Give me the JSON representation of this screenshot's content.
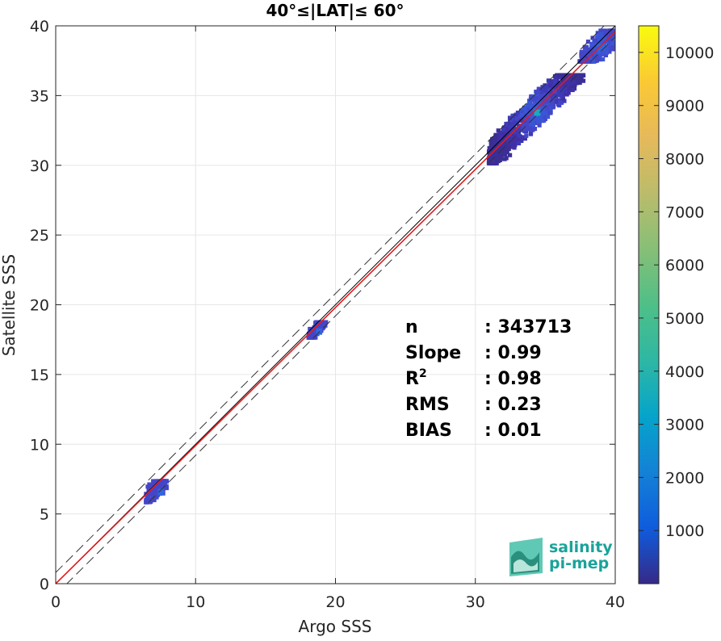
{
  "chart_data": {
    "type": "heatmap",
    "title": "40°≤|LAT|≤ 60°",
    "xlabel": "Argo SSS",
    "ylabel": "Satellite SSS",
    "xlim": [
      0,
      40
    ],
    "ylim": [
      0,
      40
    ],
    "x_ticks": [
      "0",
      "10",
      "20",
      "30",
      "40"
    ],
    "y_ticks": [
      "0",
      "5",
      "10",
      "15",
      "20",
      "25",
      "30",
      "35",
      "40"
    ],
    "grid": true,
    "colorbar": {
      "range": [
        0,
        10500
      ],
      "ticks": [
        "1000",
        "2000",
        "3000",
        "4000",
        "5000",
        "6000",
        "7000",
        "8000",
        "9000",
        "10000"
      ],
      "colormap": "parula"
    },
    "lines": [
      {
        "type": "identity",
        "slope": 1,
        "intercept": 0,
        "color": "#000000",
        "style": "solid"
      },
      {
        "type": "regression",
        "slope": 0.99,
        "intercept": 0.0,
        "color": "#e41a1c",
        "style": "solid"
      },
      {
        "type": "upper-bound",
        "slope": 1,
        "intercept": 0.8,
        "color": "#333333",
        "style": "dashed"
      },
      {
        "type": "lower-bound",
        "slope": 1,
        "intercept": -0.8,
        "color": "#333333",
        "style": "dashed"
      }
    ],
    "clusters": [
      {
        "x_range": [
          30.8,
          37.6
        ],
        "y_range": [
          30.3,
          36.6
        ],
        "intensity": "low",
        "peak_x": 34.2,
        "peak_y": 34.0,
        "peak_count": 2500
      },
      {
        "x_range": [
          37.3,
          39.8
        ],
        "y_range": [
          37.6,
          39.8
        ],
        "intensity": "low",
        "peak_x": 38.8,
        "peak_y": 38.7,
        "peak_count": 1500
      },
      {
        "x_range": [
          17.9,
          19.2
        ],
        "y_range": [
          17.8,
          18.9
        ],
        "intensity": "low",
        "peak_x": 18.6,
        "peak_y": 18.3,
        "peak_count": 600
      },
      {
        "x_range": [
          6.3,
          7.8
        ],
        "y_range": [
          6.0,
          7.5
        ],
        "intensity": "low",
        "peak_x": 7.3,
        "peak_y": 6.8,
        "peak_count": 200
      }
    ],
    "stats": [
      {
        "label": "n",
        "value": ": 343713"
      },
      {
        "label": "Slope",
        "value": ": 0.99"
      },
      {
        "label": "R",
        "sup": "2",
        "value": ": 0.98"
      },
      {
        "label": "RMS",
        "value": ": 0.23"
      },
      {
        "label": "BIAS",
        "value": ": 0.01"
      }
    ]
  },
  "logo": {
    "line1": "salinity",
    "line2": "pi-mep"
  }
}
